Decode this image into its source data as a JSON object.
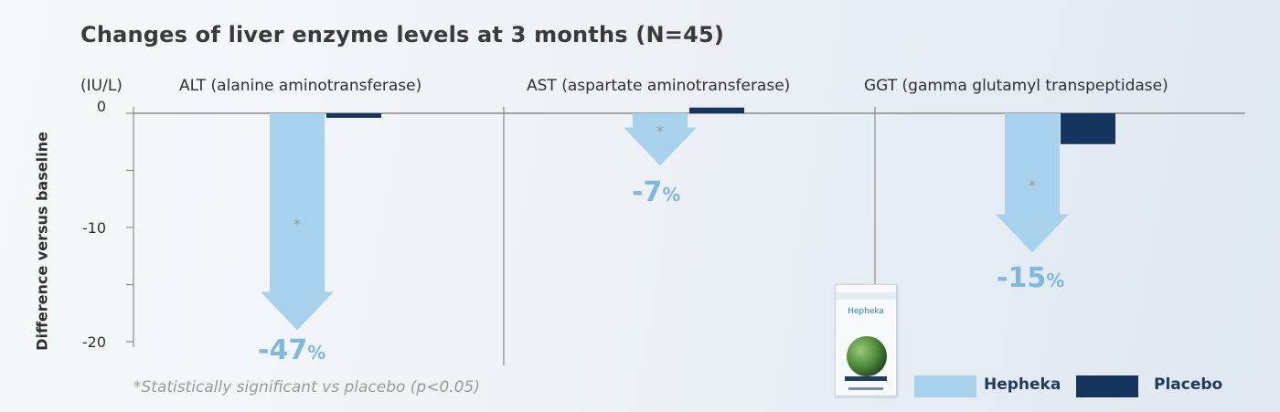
{
  "title": "Changes of liver enzyme levels at 3 months (N=45)",
  "unit": "(IU/L)",
  "footnote": "*Statistically significant vs placebo (p<0.05)",
  "colors": {
    "hepheka": "#a8d2ec",
    "placebo": "#15345e",
    "percent": "#7fb8dd",
    "axis": "#8a8a8a"
  },
  "legend": [
    {
      "label": "Hepheka",
      "color": "#a8d2ec"
    },
    {
      "label": "Placebo",
      "color": "#15345e"
    }
  ],
  "product": {
    "name": "Hepheka",
    "icon": "product-box-icon"
  },
  "chart_data": {
    "type": "bar",
    "ylabel": "Difference versus baseline",
    "yticks": [
      0,
      -10,
      -20
    ],
    "ylim": [
      -20.3,
      0.5
    ],
    "panels": [
      {
        "title": "ALT (alanine aminotransferase)",
        "hepheka": -19.0,
        "placebo": -0.4,
        "hepheka_label_num": "-47",
        "hepheka_label_sym": "%",
        "significant": true,
        "significance_mark": "*"
      },
      {
        "title": "AST (aspartate aminotransferase)",
        "hepheka": -4.6,
        "placebo": 0.5,
        "hepheka_label_num": "-7",
        "hepheka_label_sym": "%",
        "significant": true,
        "significance_mark": "*"
      },
      {
        "title": "GGT (gamma glutamyl transpeptidase)",
        "hepheka": -12.2,
        "placebo": -2.7,
        "hepheka_label_num": "-15",
        "hepheka_label_sym": "%",
        "significant": true,
        "significance_mark": "*"
      }
    ]
  }
}
